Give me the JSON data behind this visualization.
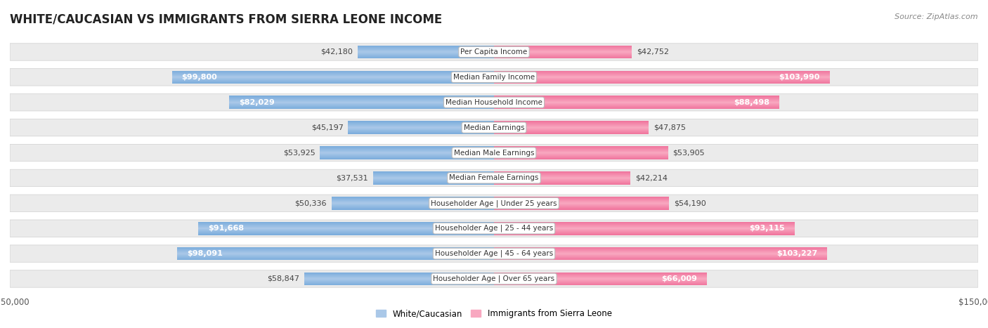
{
  "title": "WHITE/CAUCASIAN VS IMMIGRANTS FROM SIERRA LEONE INCOME",
  "source": "Source: ZipAtlas.com",
  "categories": [
    "Per Capita Income",
    "Median Family Income",
    "Median Household Income",
    "Median Earnings",
    "Median Male Earnings",
    "Median Female Earnings",
    "Householder Age | Under 25 years",
    "Householder Age | 25 - 44 years",
    "Householder Age | 45 - 64 years",
    "Householder Age | Over 65 years"
  ],
  "white_values": [
    42180,
    99800,
    82029,
    45197,
    53925,
    37531,
    50336,
    91668,
    98091,
    58847
  ],
  "immigrant_values": [
    42752,
    103990,
    88498,
    47875,
    53905,
    42214,
    54190,
    93115,
    103227,
    66009
  ],
  "white_color_light": "#aac8e8",
  "white_color_dark": "#4a90d0",
  "immigrant_color_light": "#f8a8c0",
  "immigrant_color_dark": "#e8407a",
  "white_label": "White/Caucasian",
  "immigrant_label": "Immigrants from Sierra Leone",
  "max_value": 150000,
  "bg_color": "#ffffff",
  "row_bg_color": "#ebebeb",
  "row_border_color": "#d0d0d0",
  "title_fontsize": 12,
  "value_fontsize": 8,
  "cat_fontsize": 7.5,
  "inside_threshold": 60000
}
